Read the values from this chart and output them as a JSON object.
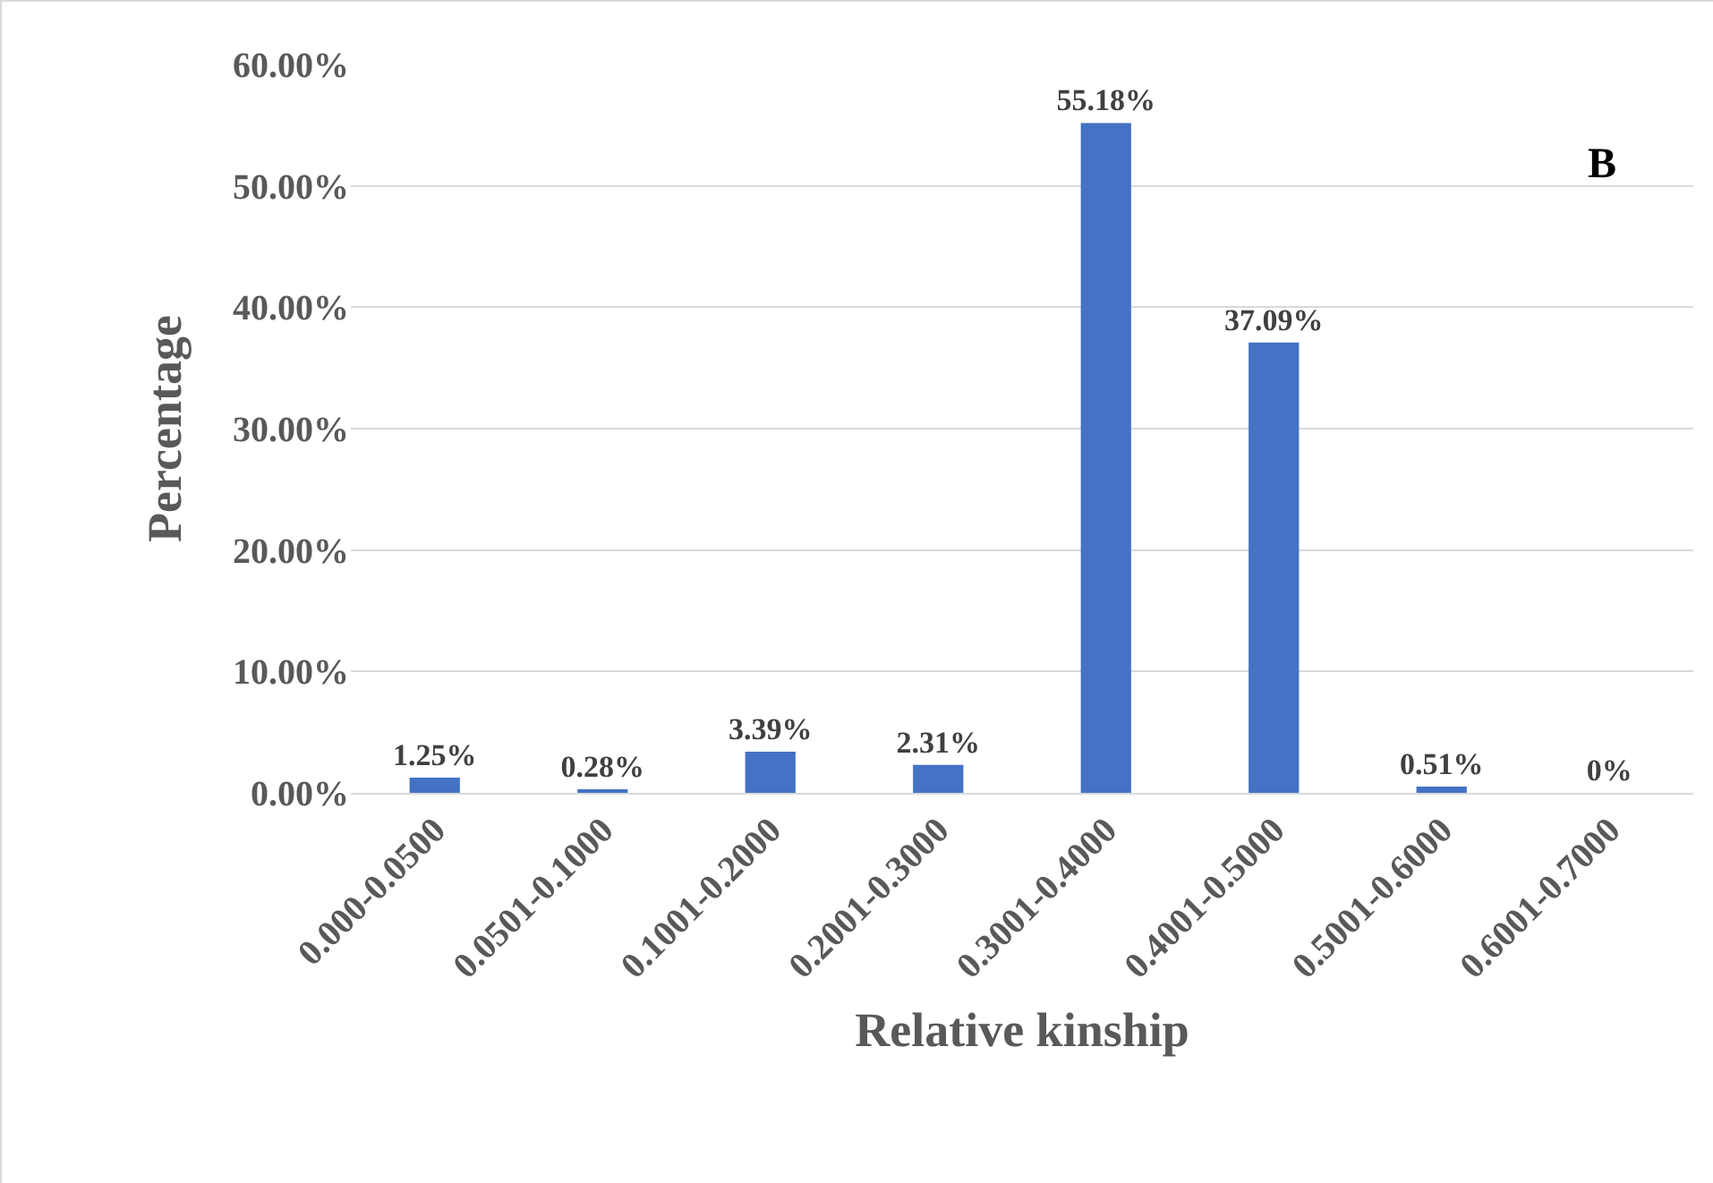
{
  "chart_data": {
    "type": "bar",
    "xlabel": "Relative kinship",
    "ylabel": "Percentage",
    "categories": [
      "0.000-0.0500",
      "0.0501-0.1000",
      "0.1001-0.2000",
      "0.2001-0.3000",
      "0.3001-0.4000",
      "0.4001-0.5000",
      "0.5001-0.6000",
      "0.6001-0.7000"
    ],
    "values": [
      1.25,
      0.28,
      3.39,
      2.31,
      55.18,
      37.09,
      0.51,
      0
    ],
    "value_labels": [
      "1.25%",
      "0.28%",
      "3.39%",
      "2.31%",
      "55.18%",
      "37.09%",
      "0.51%",
      "0%"
    ],
    "color": "#4472c4",
    "ylim": [
      0,
      60
    ],
    "yticks": [
      {
        "value": 0,
        "label": "0.00%"
      },
      {
        "value": 10,
        "label": "10.00%"
      },
      {
        "value": 20,
        "label": "20.00%"
      },
      {
        "value": 30,
        "label": "30.00%"
      },
      {
        "value": 40,
        "label": "40.00%"
      },
      {
        "value": 50,
        "label": "50.00%"
      },
      {
        "value": 60,
        "label": "60.00%"
      }
    ],
    "grid": "y",
    "legend": false,
    "annotations": [
      "B"
    ]
  }
}
